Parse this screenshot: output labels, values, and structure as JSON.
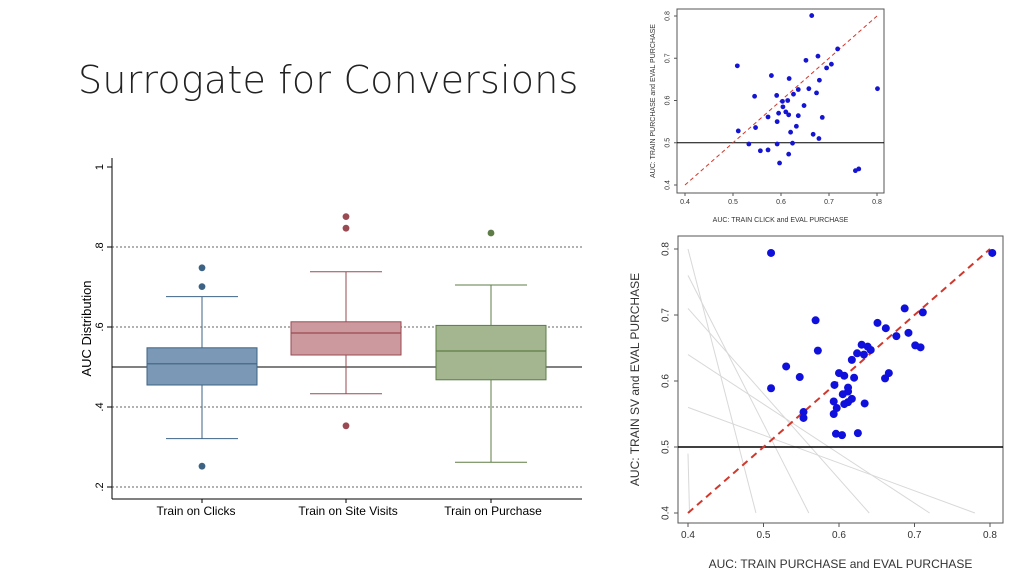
{
  "slide": {
    "title": "Surrogate for Conversions"
  },
  "chart_data": [
    {
      "type": "box",
      "ylabel": "AUC Distribution",
      "ylim": [
        0.2,
        1.0
      ],
      "yticks": [
        {
          "value": 1.0,
          "label": "1"
        },
        {
          "value": 0.8,
          "label": ".8"
        },
        {
          "value": 0.6,
          "label": ".6"
        },
        {
          "value": 0.4,
          "label": ".4"
        },
        {
          "value": 0.2,
          "label": ".2"
        }
      ],
      "reference_line": 0.5,
      "grid": "dotted at .8 .6 .4 .2",
      "boxes": [
        {
          "label": "Train on Clicks",
          "color": "#7b98b6",
          "edge": "#3d6384",
          "q1": 0.455,
          "median": 0.508,
          "q3": 0.548,
          "wlo": 0.321,
          "whi": 0.676,
          "outliers": [
            0.748,
            0.701,
            0.252
          ]
        },
        {
          "label": "Train on Site Visits",
          "color": "#cc9a9e",
          "edge": "#9a4a52",
          "q1": 0.53,
          "median": 0.585,
          "q3": 0.613,
          "wlo": 0.433,
          "whi": 0.738,
          "outliers": [
            0.876,
            0.847,
            0.353
          ]
        },
        {
          "label": "Train on Purchase",
          "color": "#a4b68f",
          "edge": "#5e7d46",
          "q1": 0.468,
          "median": 0.54,
          "q3": 0.604,
          "wlo": 0.262,
          "whi": 0.705,
          "outliers": [
            0.835
          ]
        }
      ]
    },
    {
      "type": "scatter",
      "xlabel": "AUC: TRAIN CLICK and EVAL PURCHASE",
      "ylabel": "AUC: TRAIN PURCHASE and EVAL PURCHASE",
      "xlim": [
        0.4,
        0.8
      ],
      "ylim": [
        0.4,
        0.8
      ],
      "xticks": [
        0.4,
        0.5,
        0.6,
        0.7,
        0.8
      ],
      "yticks": [
        0.4,
        0.5,
        0.6,
        0.7,
        0.8
      ],
      "xticklabels": [
        "0.4",
        "0.5",
        "0.6",
        "0.7",
        "0.8"
      ],
      "yticklabels": [
        "0.4",
        "0.5",
        "0.6",
        "0.7",
        "0.8"
      ],
      "hline": 0.5,
      "diagonal": true,
      "point_color": "#1414d2",
      "points": [
        [
          0.664,
          0.801
        ],
        [
          0.718,
          0.722
        ],
        [
          0.677,
          0.705
        ],
        [
          0.509,
          0.682
        ],
        [
          0.705,
          0.686
        ],
        [
          0.695,
          0.677
        ],
        [
          0.652,
          0.695
        ],
        [
          0.58,
          0.659
        ],
        [
          0.617,
          0.652
        ],
        [
          0.68,
          0.648
        ],
        [
          0.801,
          0.628
        ],
        [
          0.658,
          0.628
        ],
        [
          0.591,
          0.612
        ],
        [
          0.545,
          0.61
        ],
        [
          0.674,
          0.618
        ],
        [
          0.636,
          0.626
        ],
        [
          0.626,
          0.615
        ],
        [
          0.603,
          0.598
        ],
        [
          0.614,
          0.6
        ],
        [
          0.604,
          0.585
        ],
        [
          0.648,
          0.588
        ],
        [
          0.61,
          0.573
        ],
        [
          0.595,
          0.57
        ],
        [
          0.573,
          0.561
        ],
        [
          0.636,
          0.564
        ],
        [
          0.616,
          0.566
        ],
        [
          0.592,
          0.55
        ],
        [
          0.686,
          0.56
        ],
        [
          0.547,
          0.536
        ],
        [
          0.632,
          0.539
        ],
        [
          0.62,
          0.525
        ],
        [
          0.511,
          0.528
        ],
        [
          0.667,
          0.52
        ],
        [
          0.679,
          0.51
        ],
        [
          0.592,
          0.497
        ],
        [
          0.624,
          0.499
        ],
        [
          0.533,
          0.497
        ],
        [
          0.573,
          0.483
        ],
        [
          0.616,
          0.473
        ],
        [
          0.557,
          0.481
        ],
        [
          0.597,
          0.452
        ],
        [
          0.762,
          0.438
        ],
        [
          0.755,
          0.434
        ]
      ]
    },
    {
      "type": "scatter",
      "xlabel": "AUC: TRAIN PURCHASE and EVAL PURCHASE",
      "ylabel": "AUC: TRAIN SV and EVAL PURCHASE",
      "xlim": [
        0.4,
        0.8
      ],
      "ylim": [
        0.4,
        0.8
      ],
      "xticks": [
        0.4,
        0.5,
        0.6,
        0.7,
        0.8
      ],
      "yticks": [
        0.4,
        0.5,
        0.6,
        0.7,
        0.8
      ],
      "xticklabels": [
        "0.4",
        "0.5",
        "0.6",
        "0.7",
        "0.8"
      ],
      "yticklabels": [
        "0.4",
        "0.5",
        "0.6",
        "0.7",
        "0.8"
      ],
      "hline": 0.5,
      "diagonal": true,
      "point_color": "#1010dc",
      "points": [
        [
          0.51,
          0.794
        ],
        [
          0.803,
          0.794
        ],
        [
          0.687,
          0.71
        ],
        [
          0.711,
          0.704
        ],
        [
          0.569,
          0.692
        ],
        [
          0.651,
          0.688
        ],
        [
          0.662,
          0.68
        ],
        [
          0.692,
          0.673
        ],
        [
          0.701,
          0.654
        ],
        [
          0.638,
          0.652
        ],
        [
          0.708,
          0.651
        ],
        [
          0.676,
          0.668
        ],
        [
          0.63,
          0.655
        ],
        [
          0.642,
          0.647
        ],
        [
          0.572,
          0.646
        ],
        [
          0.624,
          0.642
        ],
        [
          0.617,
          0.632
        ],
        [
          0.633,
          0.64
        ],
        [
          0.53,
          0.622
        ],
        [
          0.6,
          0.612
        ],
        [
          0.607,
          0.608
        ],
        [
          0.62,
          0.605
        ],
        [
          0.666,
          0.612
        ],
        [
          0.661,
          0.604
        ],
        [
          0.548,
          0.606
        ],
        [
          0.594,
          0.594
        ],
        [
          0.612,
          0.59
        ],
        [
          0.51,
          0.589
        ],
        [
          0.612,
          0.584
        ],
        [
          0.605,
          0.58
        ],
        [
          0.612,
          0.568
        ],
        [
          0.607,
          0.565
        ],
        [
          0.593,
          0.569
        ],
        [
          0.617,
          0.573
        ],
        [
          0.634,
          0.566
        ],
        [
          0.597,
          0.559
        ],
        [
          0.593,
          0.55
        ],
        [
          0.553,
          0.553
        ],
        [
          0.553,
          0.544
        ],
        [
          0.596,
          0.52
        ],
        [
          0.604,
          0.518
        ],
        [
          0.625,
          0.521
        ]
      ]
    }
  ]
}
